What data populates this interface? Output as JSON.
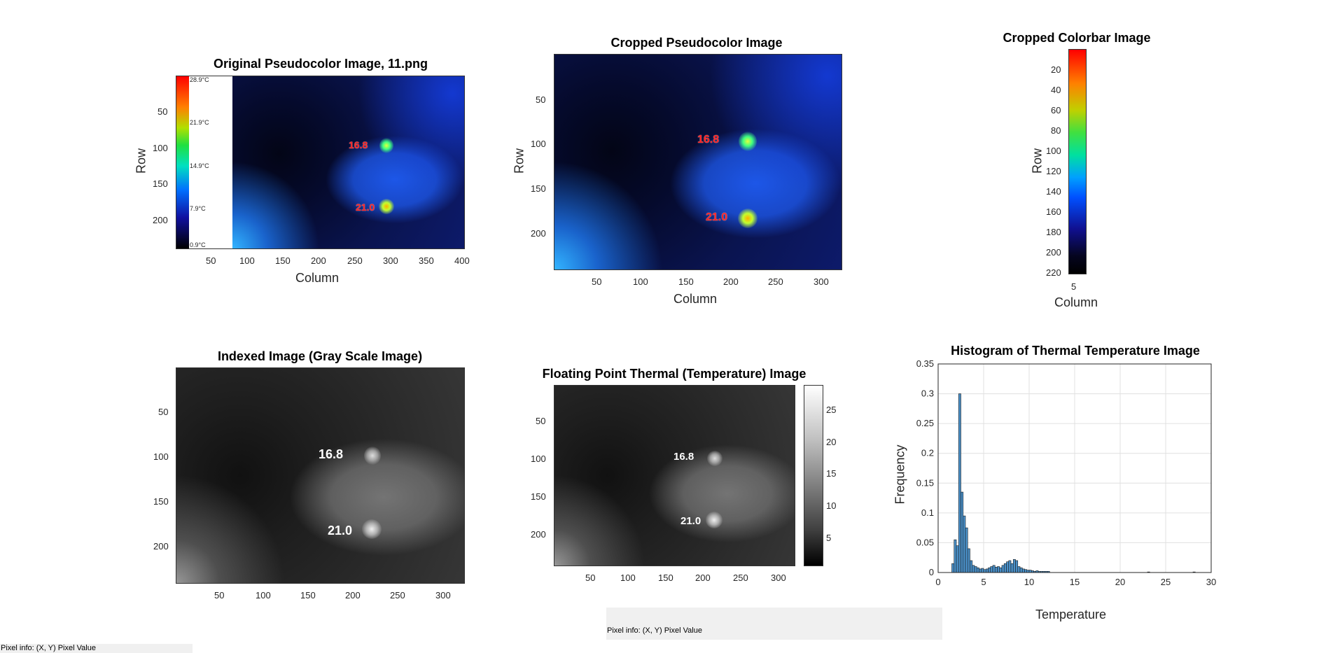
{
  "panels": {
    "original": {
      "title": "Original Pseudocolor Image, 11.png",
      "xlabel": "Column",
      "ylabel": "Row",
      "xticks": [
        "50",
        "100",
        "150",
        "200",
        "250",
        "300",
        "350",
        "400"
      ],
      "yticks": [
        "50",
        "100",
        "150",
        "200"
      ],
      "legend_labels": [
        "28.9°C",
        "21.9°C",
        "14.9°C",
        "7.9°C",
        "0.9°C"
      ],
      "spot_labels": [
        "16.8",
        "21.0"
      ]
    },
    "cropped": {
      "title": "Cropped Pseudocolor Image",
      "xlabel": "Column",
      "ylabel": "Row",
      "xticks": [
        "50",
        "100",
        "150",
        "200",
        "250",
        "300"
      ],
      "yticks": [
        "50",
        "100",
        "150",
        "200"
      ],
      "spot_labels": [
        "16.8",
        "21.0"
      ]
    },
    "colorbar": {
      "title": "Cropped Colorbar Image",
      "xlabel": "Column",
      "ylabel": "Row",
      "xticks": [
        "5"
      ],
      "yticks": [
        "20",
        "40",
        "60",
        "80",
        "100",
        "120",
        "140",
        "160",
        "180",
        "200",
        "220"
      ]
    },
    "indexed": {
      "title": "Indexed Image (Gray Scale Image)",
      "xticks": [
        "50",
        "100",
        "150",
        "200",
        "250",
        "300"
      ],
      "yticks": [
        "50",
        "100",
        "150",
        "200"
      ],
      "spot_labels": [
        "16.8",
        "21.0"
      ]
    },
    "floating": {
      "title": "Floating Point Thermal (Temperature) Image",
      "xticks": [
        "50",
        "100",
        "150",
        "200",
        "250",
        "300"
      ],
      "yticks": [
        "50",
        "100",
        "150",
        "200"
      ],
      "cbar_ticks": [
        "25",
        "20",
        "15",
        "10",
        "5"
      ],
      "spot_labels": [
        "16.8",
        "21.0"
      ]
    }
  },
  "histogram_labels": {
    "title": "Histogram of Thermal Temperature Image",
    "xlabel": "Temperature",
    "ylabel": "Frequency",
    "xticks": [
      "0",
      "5",
      "10",
      "15",
      "20",
      "25",
      "30"
    ],
    "yticks": [
      "0",
      "0.05",
      "0.1",
      "0.15",
      "0.2",
      "0.25",
      "0.3",
      "0.35"
    ]
  },
  "pixel_info": {
    "left": "Pixel info: (X, Y)  Pixel Value",
    "center": "Pixel info: (X, Y)  Pixel Value"
  },
  "colors": {
    "bar_fill": "#4a90c8",
    "grid": "#e0e0e0"
  },
  "chart_data": {
    "type": "bar",
    "title": "Histogram of Thermal Temperature Image",
    "xlabel": "Temperature",
    "ylabel": "Frequency",
    "xlim": [
      0,
      30
    ],
    "ylim": [
      0,
      0.35
    ],
    "grid": true,
    "bin_width": 0.25,
    "x": [
      1.5,
      1.75,
      2.0,
      2.25,
      2.5,
      2.75,
      3.0,
      3.25,
      3.5,
      3.75,
      4.0,
      4.25,
      4.5,
      4.75,
      5.0,
      5.25,
      5.5,
      5.75,
      6.0,
      6.25,
      6.5,
      6.75,
      7.0,
      7.25,
      7.5,
      7.75,
      8.0,
      8.25,
      8.5,
      8.75,
      9.0,
      9.25,
      9.5,
      9.75,
      10.0,
      10.25,
      10.5,
      10.75,
      11.0,
      11.25,
      11.5,
      11.75,
      12.0,
      23.0,
      28.0
    ],
    "values": [
      0.015,
      0.055,
      0.045,
      0.3,
      0.135,
      0.095,
      0.075,
      0.04,
      0.02,
      0.012,
      0.01,
      0.008,
      0.006,
      0.007,
      0.005,
      0.006,
      0.008,
      0.01,
      0.012,
      0.009,
      0.01,
      0.008,
      0.012,
      0.015,
      0.018,
      0.02,
      0.015,
      0.022,
      0.02,
      0.01,
      0.008,
      0.006,
      0.005,
      0.004,
      0.004,
      0.003,
      0.002,
      0.003,
      0.002,
      0.002,
      0.002,
      0.002,
      0.002,
      0.001,
      0.001
    ]
  }
}
